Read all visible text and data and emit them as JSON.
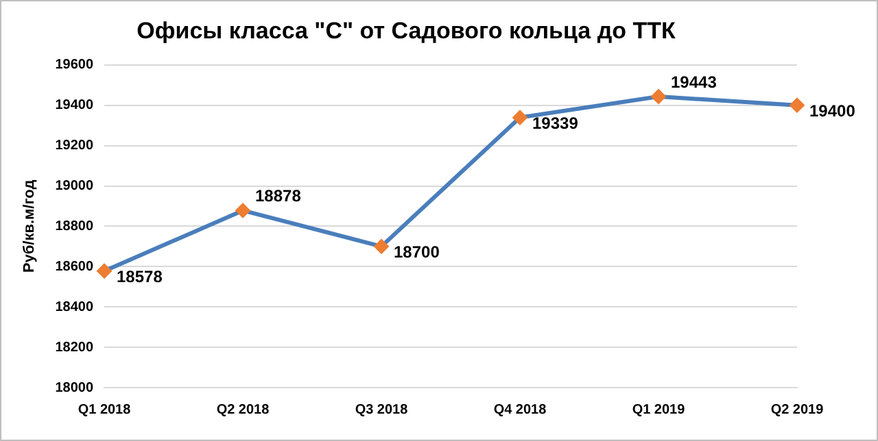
{
  "chart_data": {
    "type": "line",
    "title": "Офисы класса \"С\" от Садового кольца до ТТК",
    "ylabel": "Руб/кв.м/год",
    "categories": [
      "Q1 2018",
      "Q2 2018",
      "Q3 2018",
      "Q4 2018",
      "Q1 2019",
      "Q2 2019"
    ],
    "series": [
      {
        "color": "#4a7ebb",
        "colors": [
          "#ed7d31",
          "#ed7d31",
          "#ed7d31",
          "#ed7d31",
          "#ed7d31",
          "#ed7d31"
        ],
        "values": [
          18578,
          18878,
          18700,
          19339,
          19443,
          19400
        ]
      }
    ],
    "ylim": [
      18000,
      19600
    ],
    "yticks": [
      18000,
      18200,
      18400,
      18600,
      18800,
      19000,
      19200,
      19400,
      19600
    ],
    "grid": "y",
    "legend": false,
    "marker": "diamond",
    "line_style": "solid",
    "data_labels": true
  }
}
